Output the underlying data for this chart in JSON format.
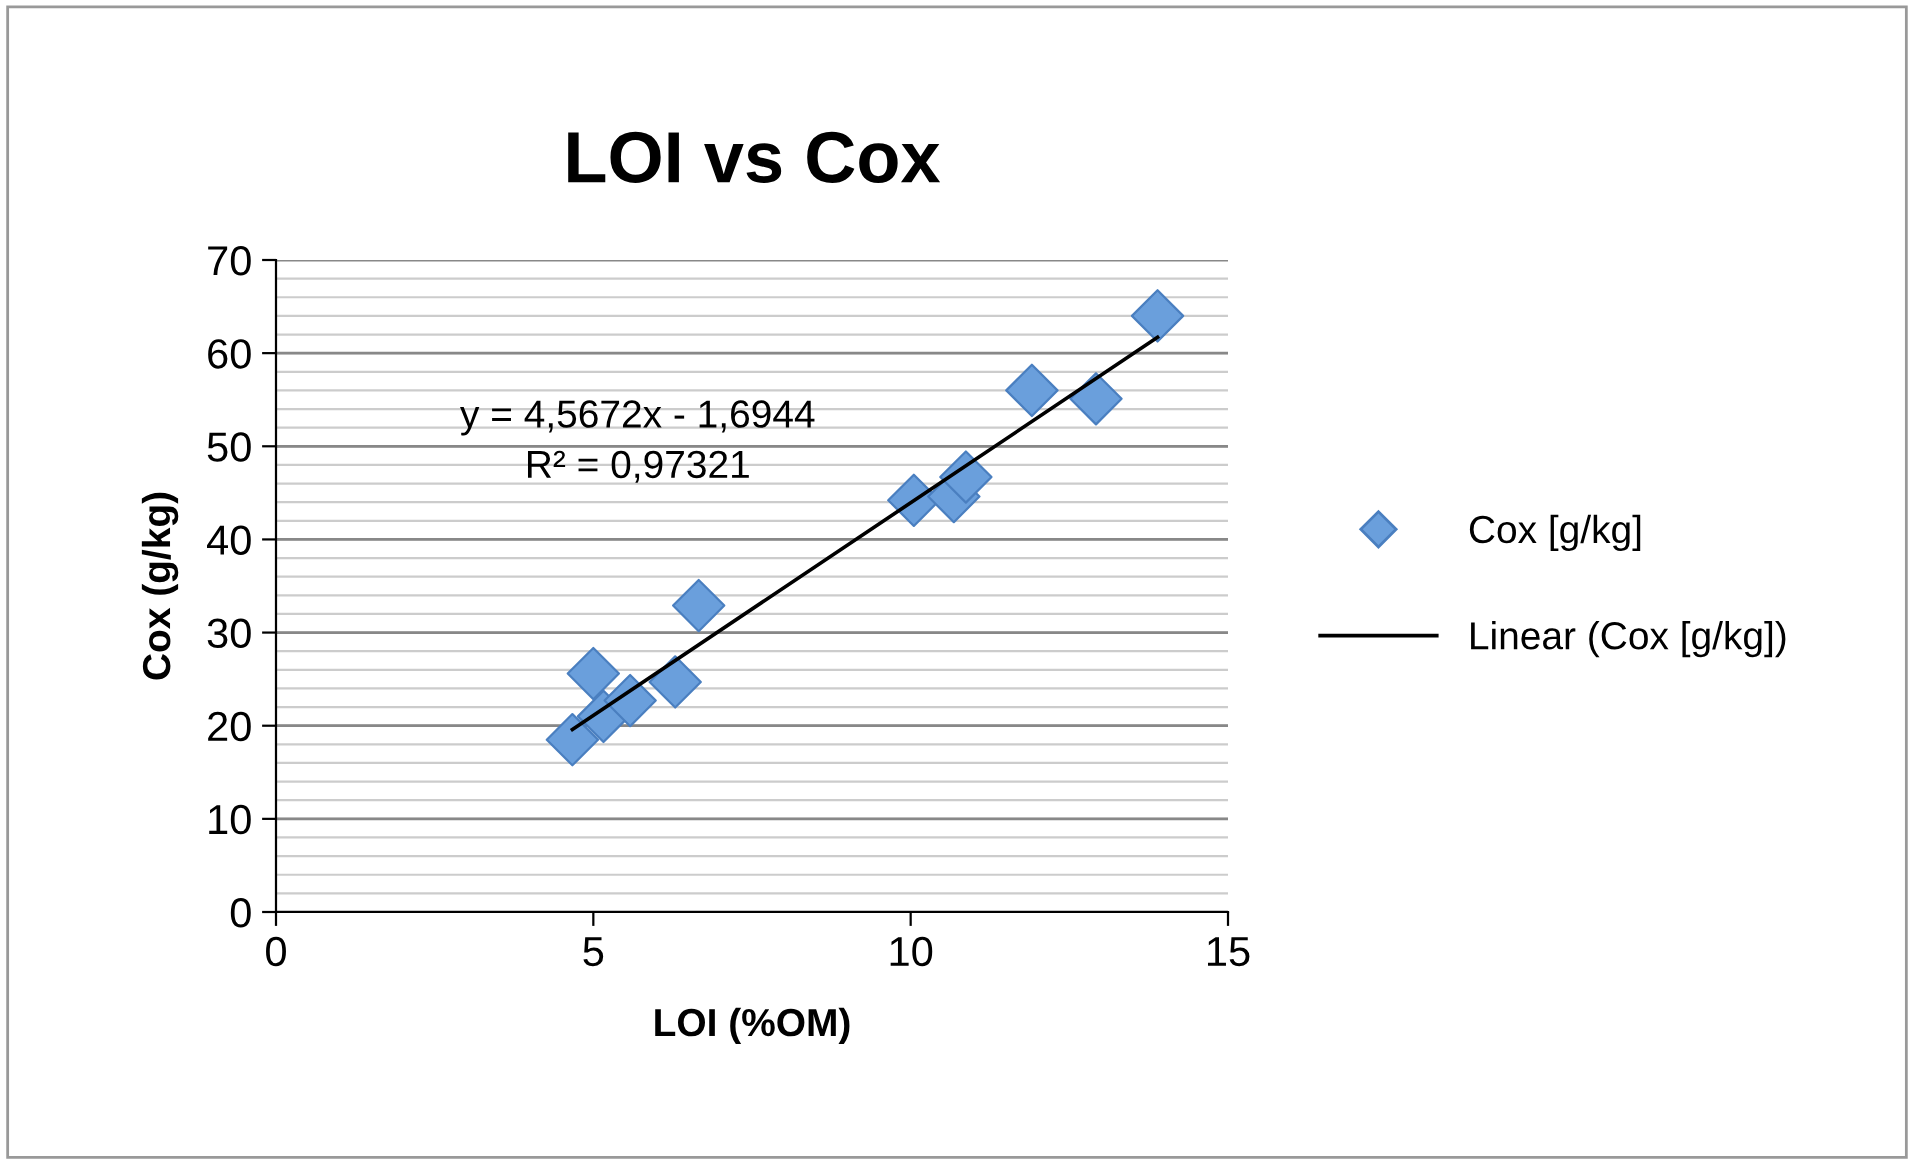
{
  "chart_data": {
    "type": "scatter",
    "title": "LOI vs Cox",
    "xlabel": "LOI (%OM)",
    "ylabel": "Cox (g/kg)",
    "xlim": [
      0,
      15
    ],
    "xticks": [
      0,
      5,
      10,
      15
    ],
    "ylim": [
      0,
      70
    ],
    "yticks": [
      0,
      10,
      20,
      30,
      40,
      50,
      60,
      70
    ],
    "grid": "y",
    "legend": "right",
    "marker": "diamond",
    "series": [
      {
        "name": "Cox [g/kg]",
        "color": "#6a9fdc",
        "x": [
          4.67,
          5.0,
          5.16,
          5.58,
          6.29,
          6.66,
          10.05,
          10.68,
          10.87,
          11.91,
          12.92,
          13.89
        ],
        "values": [
          18.5,
          25.6,
          21.0,
          22.7,
          24.7,
          32.9,
          44.2,
          44.6,
          46.7,
          56.0,
          55.1,
          64.0
        ]
      },
      {
        "name": "Linear (Cox [g/kg])",
        "type": "line",
        "color": "#000000",
        "marker": "none",
        "x": [
          4.67,
          13.89
        ],
        "values": [
          19.6,
          61.7
        ]
      }
    ],
    "annotations": [
      "y = 4,5672x - 1,6944\nR² = 0,97321"
    ]
  }
}
